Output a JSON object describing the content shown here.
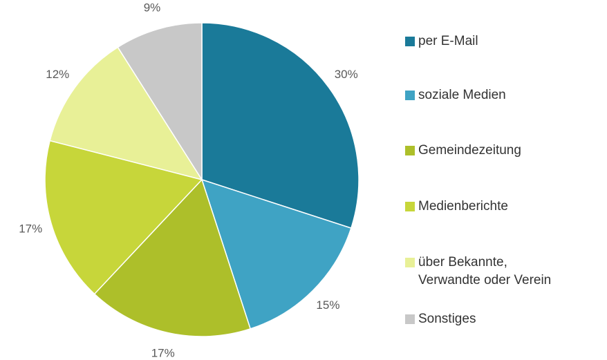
{
  "chart_data": {
    "type": "pie",
    "categories": [
      "per E-Mail",
      "soziale Medien",
      "Gemeindezeitung",
      "Medienberichte",
      "über Bekannte,\nVerwandte oder Verein",
      "Sonstiges"
    ],
    "values": [
      30,
      15,
      17,
      17,
      12,
      9
    ],
    "value_labels": [
      "30%",
      "15%",
      "17%",
      "17%",
      "12%",
      "9%"
    ],
    "colors": [
      "#1a7a99",
      "#3fa3c4",
      "#adbf2a",
      "#c7d63a",
      "#e8f097",
      "#c8c8c8"
    ],
    "legend": "right"
  }
}
